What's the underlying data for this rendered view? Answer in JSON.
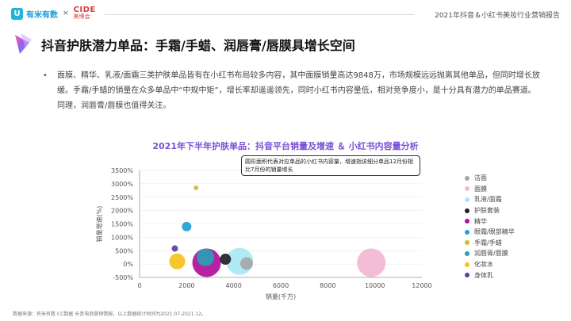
{
  "header": {
    "brand_mark": "U",
    "brand_name": "有米有数",
    "separator": "×",
    "partner_top": "CIDE",
    "partner_bottom": "美博会",
    "report_title": "2021年抖音＆小红书美妆行业营销报告"
  },
  "page": {
    "title": "抖音护肤潜力单品：手霜/手蜡、润唇膏/唇膜具增长空间",
    "bullet": "•",
    "body_text": "面膜、精华、乳液/面霜三类护肤单品皆有在小红书布局较多内容，其中面膜销量高达9848万，市场规模远远抛离其他单品，但同时增长放缓。手霜/手蜡的销量在众多单品中“中规中矩”，增长率却遥遥领先，同时小红书内容量低，相对竞争度小，是十分具有潜力的单品赛道。同理，润唇膏/唇膜也值得关注。"
  },
  "chart_data": {
    "type": "scatter",
    "title": "2021年下半年护肤单品：抖音平台销量及增速 ＆ 小红书内容量分析",
    "annotation": "圆形面积代表对应单品的小红书内容量，增速指该细分单品12月份相比7月份的销量增长",
    "xlabel": "销量(千万)",
    "ylabel": "销量增速(%)",
    "xlim": [
      0,
      12000
    ],
    "ylim": [
      -500,
      3500
    ],
    "x_ticks": [
      "0",
      "2000",
      "4000",
      "6000",
      "8000",
      "10000",
      "12000"
    ],
    "y_ticks": [
      "-500%",
      "0%",
      "500%",
      "1000%",
      "1500%",
      "2000%",
      "2500%",
      "3000%",
      "3500%"
    ],
    "grid": true,
    "legend_position": "right",
    "series": [
      {
        "name": "洁面",
        "color": "#a6a6a6",
        "x": 4550,
        "y": 20,
        "size": 8
      },
      {
        "name": "面膜",
        "color": "#f3b7d3",
        "x": 9850,
        "y": 50,
        "size": 18
      },
      {
        "name": "乳液/面霜",
        "color": "#a9e9f4",
        "x": 4250,
        "y": 100,
        "size": 17
      },
      {
        "name": "护肤套装",
        "color": "#222222",
        "x": 3650,
        "y": 180,
        "size": 7
      },
      {
        "name": "精华",
        "color": "#b0109a",
        "x": 2850,
        "y": 50,
        "size": 18
      },
      {
        "name": "眼霜/眼部精华",
        "color": "#1e9fd4",
        "x": 2000,
        "y": 1400,
        "size": 6
      },
      {
        "name": "手霜/手蜡",
        "color": "#c9bd3a",
        "x": 2400,
        "y": 2850,
        "size": 3
      },
      {
        "name": "润唇膏/唇膜",
        "color": "#2a9fb5",
        "x": 2800,
        "y": 250,
        "size": 11
      },
      {
        "name": "化妆水",
        "color": "#f5c21a",
        "x": 1600,
        "y": 100,
        "size": 10
      },
      {
        "name": "身体乳",
        "color": "#5a3fa0",
        "x": 1500,
        "y": 580,
        "size": 4
      }
    ]
  },
  "footer": {
    "source": "数据来源：有米有数 CC数据 长音电商营销情报，以上数据统计时间为2021.07-2021.12。"
  }
}
